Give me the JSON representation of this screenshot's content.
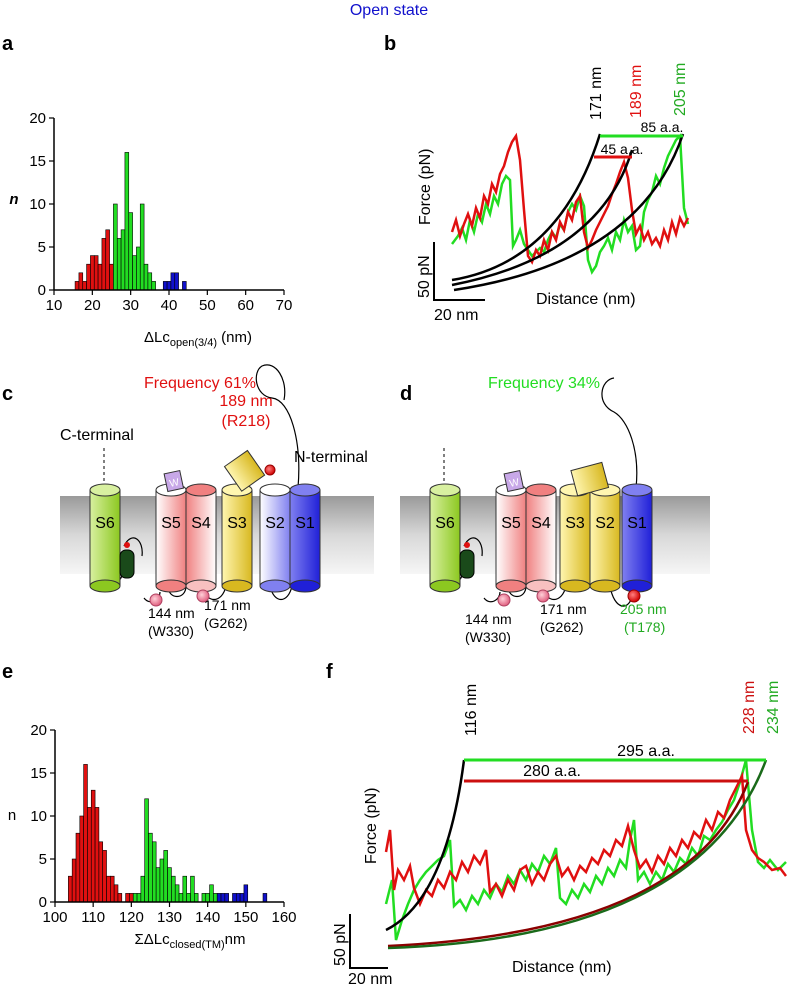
{
  "header": {
    "title": "Open state",
    "title_color": "#1010cc"
  },
  "panels": {
    "a": {
      "label": "a",
      "chart_data": {
        "type": "bar",
        "xlabel_main": "ΔLc",
        "xlabel_sub": "open(3/4)",
        "xlabel_unit": " (nm)",
        "ylabel": "n",
        "xlim": [
          10,
          70
        ],
        "ylim": [
          0,
          20
        ],
        "xticks": [
          "10",
          "20",
          "30",
          "40",
          "50",
          "60",
          "70"
        ],
        "yticks": [
          "0",
          "5",
          "10",
          "15",
          "20"
        ],
        "bin_width": 1,
        "series": [
          {
            "color": "#e01010",
            "x": [
              16,
              17,
              18,
              19,
              20,
              21,
              22,
              23,
              24,
              25
            ],
            "values": [
              1,
              2,
              1,
              3,
              4,
              4,
              3,
              6,
              7,
              3
            ]
          },
          {
            "color": "#22dd22",
            "x": [
              26,
              27,
              28,
              29,
              30,
              31,
              32,
              33,
              34,
              35,
              36
            ],
            "values": [
              10,
              6,
              7,
              16,
              9,
              4,
              5,
              10,
              3,
              2,
              1
            ]
          },
          {
            "color": "#1010cc",
            "x": [
              39,
              40,
              41,
              42,
              44
            ],
            "values": [
              1,
              1,
              2,
              2,
              1
            ]
          }
        ]
      }
    },
    "b": {
      "label": "b",
      "ylabel": "Force (pN)",
      "xlabel": "Distance (nm)",
      "scale_force": "50 pN",
      "scale_dist": "20 nm",
      "peak_labels": [
        {
          "text": "171 nm",
          "color": "#000000"
        },
        {
          "text": "189 nm",
          "color": "#e01010"
        },
        {
          "text": "205 nm",
          "color": "#22aa22"
        }
      ],
      "spans": [
        {
          "text": "85 a.a.",
          "color": "#22dd22"
        },
        {
          "text": "45 a.a.",
          "color": "#e01010"
        }
      ]
    },
    "c": {
      "label": "c",
      "frequency": "Frequency 61%",
      "frequency_color": "#e01010",
      "c_terminal": "C-terminal",
      "n_terminal": "N-terminal",
      "top_label_line1": "189 nm",
      "top_label_line2": "(R218)",
      "helices": [
        "S6",
        "S5",
        "S4",
        "S3",
        "S2",
        "S1"
      ],
      "pore_badge": "W",
      "bottom_labels": [
        {
          "line1": "144 nm",
          "line2": "(W330)"
        },
        {
          "line1": "171 nm",
          "line2": "(G262)"
        }
      ]
    },
    "d": {
      "label": "d",
      "frequency": "Frequency 34%",
      "frequency_color": "#22dd22",
      "helices": [
        "S6",
        "S5",
        "S4",
        "S3",
        "S2",
        "S1"
      ],
      "pore_badge": "W",
      "bottom_labels": [
        {
          "line1": "144 nm",
          "line2": "(W330)"
        },
        {
          "line1": "171 nm",
          "line2": "(G262)"
        },
        {
          "line1": "205 nm",
          "line2": "(T178)"
        }
      ]
    },
    "e": {
      "label": "e",
      "chart_data": {
        "type": "bar",
        "xlabel_main": "ΣΔLc",
        "xlabel_sub": "closed(TM)",
        "xlabel_unit": "nm",
        "ylabel": "n",
        "xlim": [
          100,
          160
        ],
        "ylim": [
          0,
          20
        ],
        "xticks": [
          "100",
          "110",
          "120",
          "130",
          "140",
          "150",
          "160"
        ],
        "yticks": [
          "0",
          "5",
          "10",
          "15",
          "20"
        ],
        "bin_width": 1,
        "series": [
          {
            "color": "#e01010",
            "x": [
              104,
              105,
              106,
              107,
              108,
              109,
              110,
              111,
              112,
              113,
              114,
              115,
              116,
              117,
              119,
              120
            ],
            "values": [
              3,
              5,
              8,
              10,
              16,
              11,
              13,
              11,
              7,
              6,
              3,
              3,
              2,
              1,
              1,
              1
            ]
          },
          {
            "color": "#22dd22",
            "x": [
              121,
              122,
              123,
              124,
              125,
              126,
              127,
              128,
              129,
              130,
              131,
              132,
              133,
              134,
              135,
              136,
              137,
              139,
              140,
              141,
              142
            ],
            "values": [
              1,
              1,
              3,
              12,
              8,
              7,
              4,
              5,
              6,
              4,
              3,
              2,
              1,
              3,
              1,
              3,
              1,
              1,
              1,
              2,
              1
            ]
          },
          {
            "color": "#1010cc",
            "x": [
              143,
              144,
              145,
              147,
              148,
              149,
              150,
              155
            ],
            "values": [
              1,
              1,
              1,
              1,
              1,
              1,
              2,
              1
            ]
          }
        ]
      }
    },
    "f": {
      "label": "f",
      "ylabel": "Force (pN)",
      "xlabel": "Distance (nm)",
      "scale_force": "50 pN",
      "scale_dist": "20 nm",
      "peak_labels": [
        {
          "text": "116 nm",
          "color": "#000000"
        },
        {
          "text": "228 nm",
          "color": "#cc1010"
        },
        {
          "text": "234 nm",
          "color": "#22aa22"
        }
      ],
      "spans": [
        {
          "text": "295 a.a.",
          "color": "#22dd22"
        },
        {
          "text": "280 a.a.",
          "color": "#cc1010"
        }
      ]
    }
  }
}
